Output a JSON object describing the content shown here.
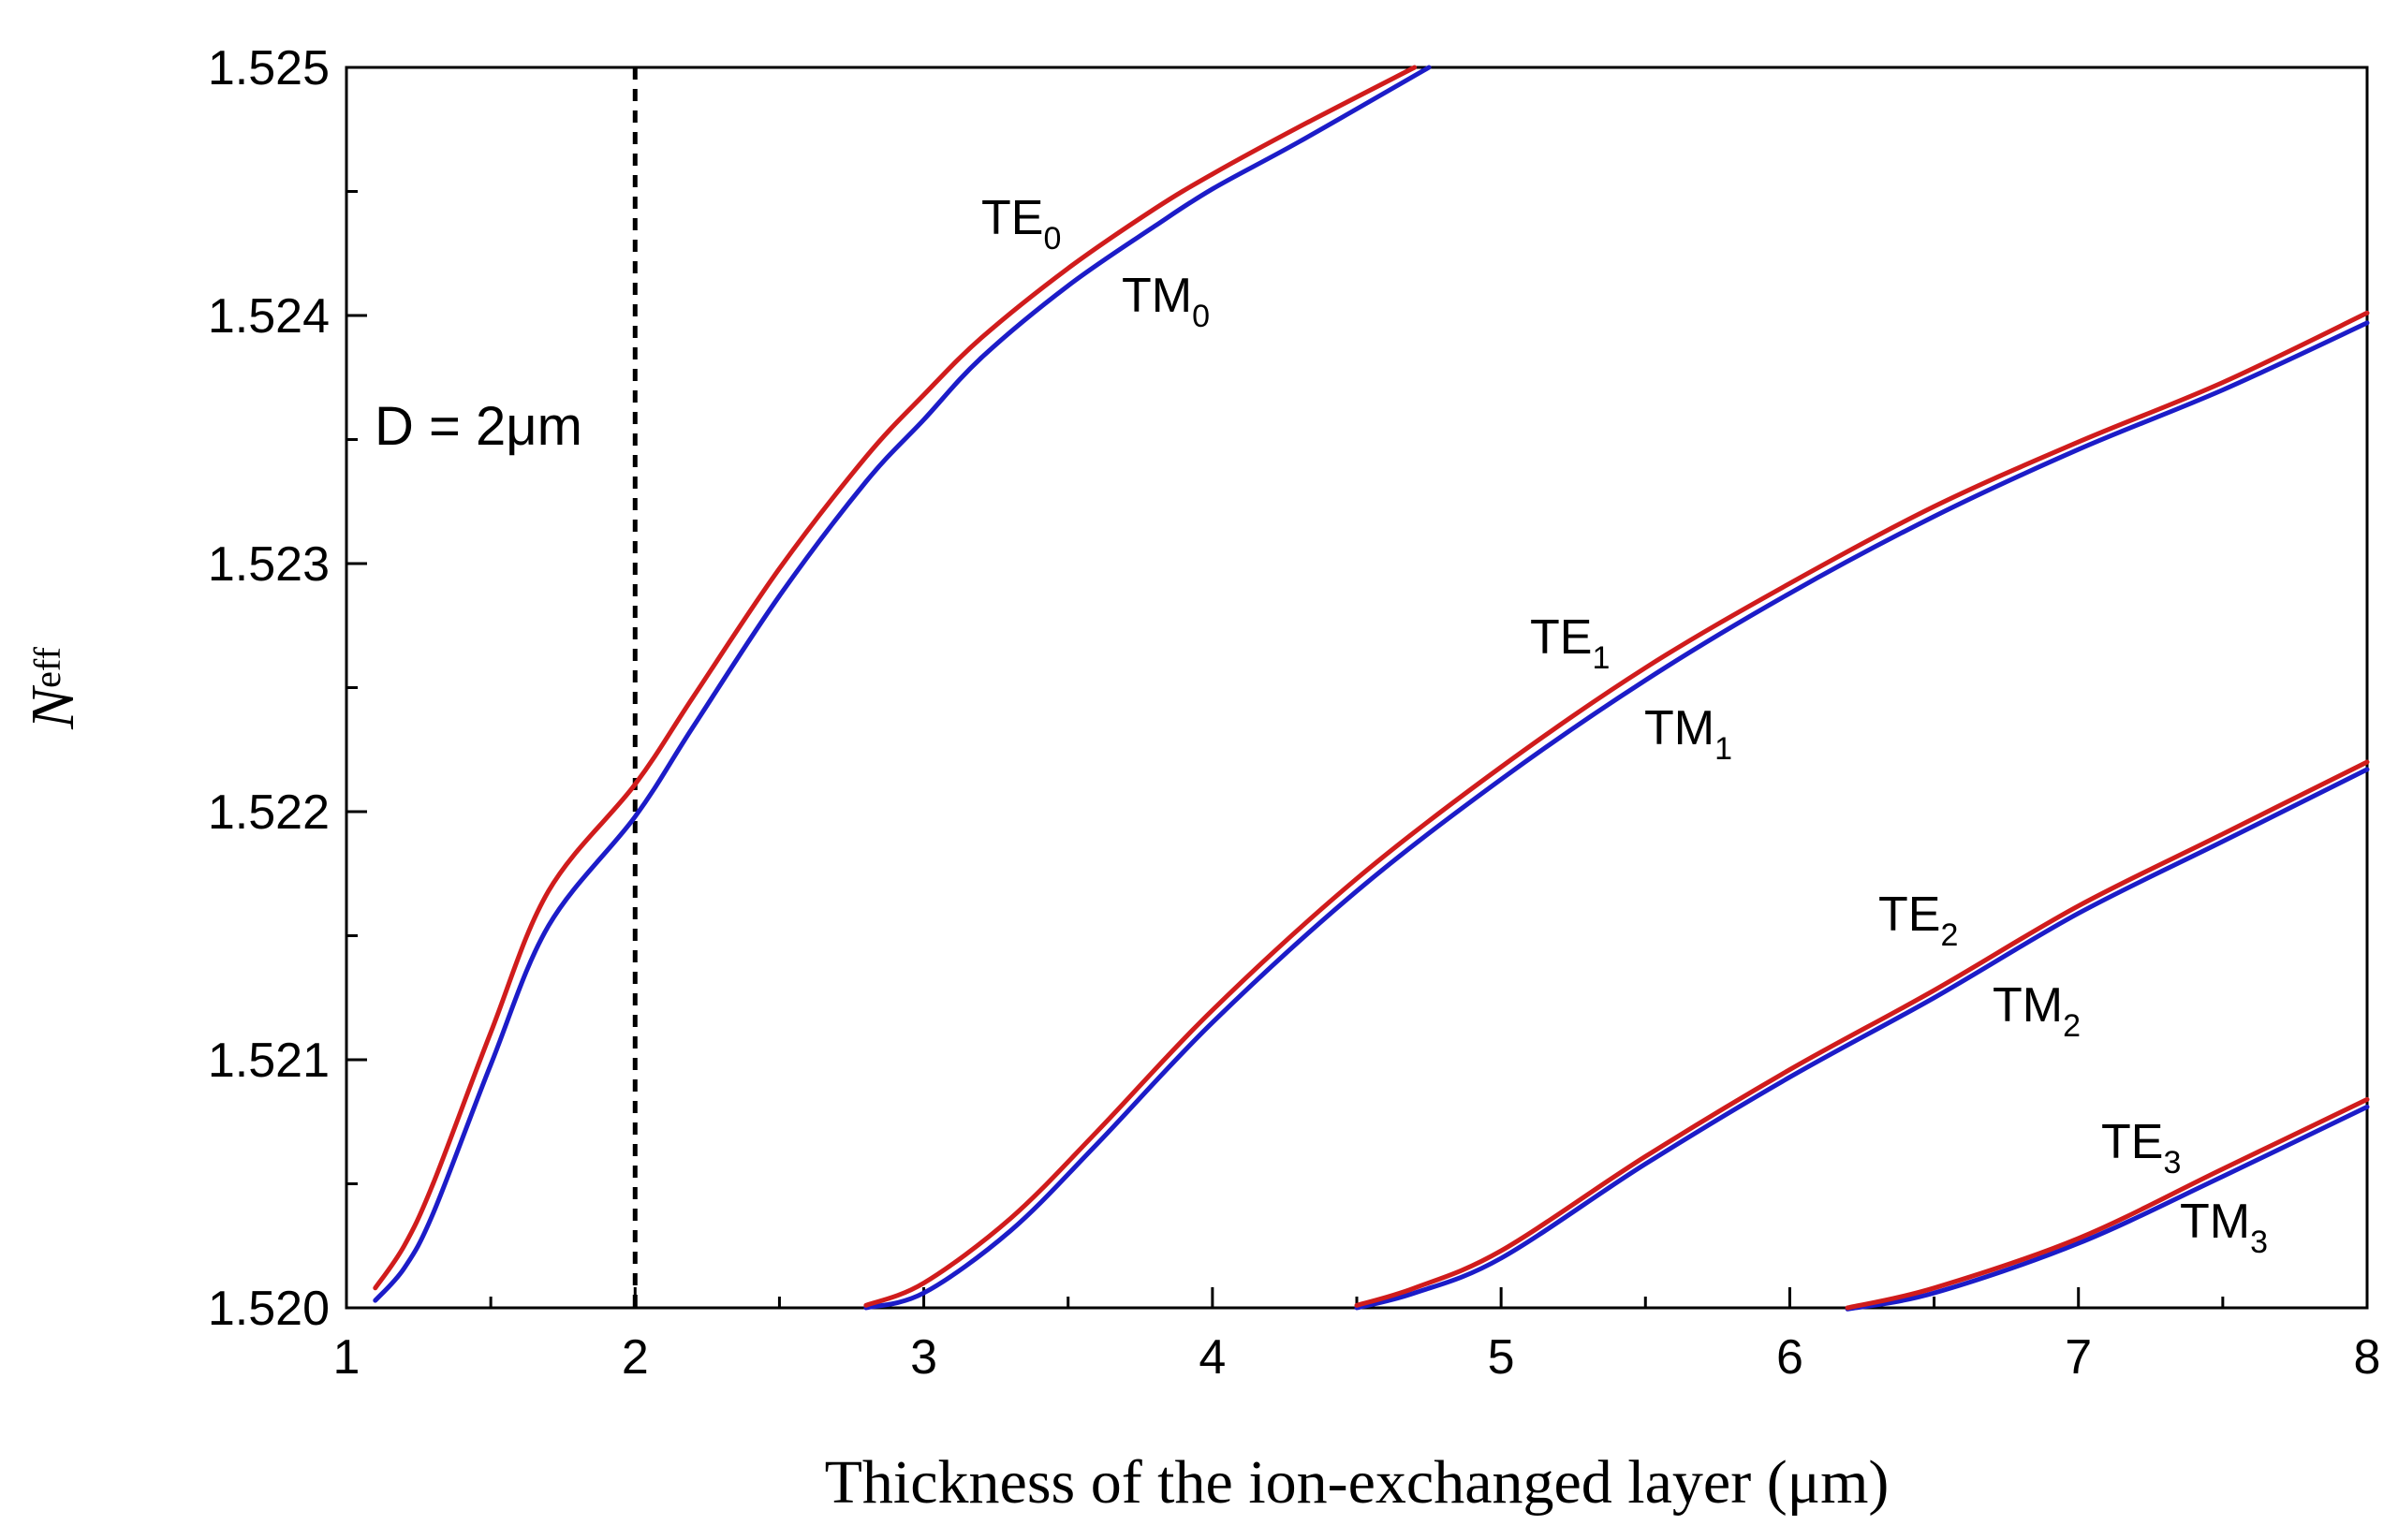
{
  "chart_data": {
    "type": "line",
    "title": "",
    "xlabel": "Thickness of the ion-exchanged layer (μm)",
    "ylabel": "N",
    "ylabel_subscript": "eff",
    "xlim": [
      1,
      8
    ],
    "ylim": [
      1.52,
      1.525
    ],
    "x_ticks": [
      1,
      2,
      3,
      4,
      5,
      6,
      7,
      8
    ],
    "x_tick_labels": [
      "1",
      "2",
      "3",
      "4",
      "5",
      "6",
      "7",
      "8"
    ],
    "y_ticks": [
      1.52,
      1.521,
      1.522,
      1.523,
      1.524,
      1.525
    ],
    "y_tick_labels": [
      "1.520",
      "1.521",
      "1.522",
      "1.523",
      "1.524",
      "1.525"
    ],
    "grid": false,
    "reference_line": {
      "x": 2,
      "style": "dashed",
      "label": "D = 2μm"
    },
    "colors": {
      "TE": "#d01c1c",
      "TM": "#1c1cc8",
      "axis": "#000000"
    },
    "series": [
      {
        "name": "TE0",
        "mode": "TE",
        "order": "0",
        "x": [
          1.1,
          1.2,
          1.3,
          1.5,
          1.7,
          2.0,
          2.2,
          2.5,
          2.8,
          3.0,
          3.2,
          3.5,
          3.8,
          4.0,
          4.3,
          4.7
        ],
        "y": [
          1.52008,
          1.52025,
          1.5205,
          1.52111,
          1.52168,
          1.52211,
          1.52246,
          1.52298,
          1.52343,
          1.52368,
          1.52391,
          1.52419,
          1.52443,
          1.52457,
          1.52476,
          1.525
        ]
      },
      {
        "name": "TM0",
        "mode": "TM",
        "order": "0",
        "x": [
          1.1,
          1.2,
          1.3,
          1.5,
          1.7,
          2.0,
          2.2,
          2.5,
          2.8,
          3.0,
          3.2,
          3.5,
          3.8,
          4.0,
          4.3,
          4.75
        ],
        "y": [
          1.52003,
          1.52016,
          1.52038,
          1.52098,
          1.52154,
          1.52198,
          1.52234,
          1.52287,
          1.52333,
          1.52358,
          1.52383,
          1.52412,
          1.52436,
          1.52451,
          1.5247,
          1.525
        ]
      },
      {
        "name": "TE1",
        "mode": "TE",
        "order": "1",
        "x": [
          2.8,
          3.0,
          3.3,
          3.6,
          4.0,
          4.5,
          5.0,
          5.5,
          6.0,
          6.5,
          7.0,
          7.5,
          8.0
        ],
        "y": [
          1.52001,
          1.5201,
          1.52036,
          1.52071,
          1.5212,
          1.52173,
          1.52218,
          1.52258,
          1.52292,
          1.52323,
          1.52349,
          1.52373,
          1.52401
        ]
      },
      {
        "name": "TM1",
        "mode": "TM",
        "order": "1",
        "x": [
          2.8,
          3.0,
          3.3,
          3.6,
          4.0,
          4.5,
          5.0,
          5.5,
          6.0,
          6.5,
          7.0,
          7.5,
          8.0
        ],
        "y": [
          1.52,
          1.52006,
          1.52031,
          1.52066,
          1.52115,
          1.52168,
          1.52213,
          1.52253,
          1.52288,
          1.52319,
          1.52346,
          1.5237,
          1.52397
        ]
      },
      {
        "name": "TE2",
        "mode": "TE",
        "order": "2",
        "x": [
          4.5,
          4.7,
          5.0,
          5.5,
          6.0,
          6.5,
          7.0,
          7.5,
          8.0
        ],
        "y": [
          1.52001,
          1.52008,
          1.52023,
          1.52061,
          1.52096,
          1.52128,
          1.52162,
          1.52191,
          1.5222
        ]
      },
      {
        "name": "TM2",
        "mode": "TM",
        "order": "2",
        "x": [
          4.5,
          4.7,
          5.0,
          5.5,
          6.0,
          6.5,
          7.0,
          7.5,
          8.0
        ],
        "y": [
          1.52,
          1.52006,
          1.5202,
          1.52058,
          1.52093,
          1.52125,
          1.52159,
          1.52188,
          1.52217
        ]
      },
      {
        "name": "TE3",
        "mode": "TE",
        "order": "3",
        "x": [
          6.2,
          6.5,
          7.0,
          7.5,
          8.0
        ],
        "y": [
          1.52,
          1.52008,
          1.52028,
          1.52056,
          1.52084
        ]
      },
      {
        "name": "TM3",
        "mode": "TM",
        "order": "3",
        "x": [
          6.2,
          6.5,
          7.0,
          7.5,
          8.0
        ],
        "y": [
          1.519995,
          1.52006,
          1.52026,
          1.52053,
          1.52081
        ]
      }
    ],
    "annotations": [
      {
        "series": "TE0",
        "base": "TE",
        "sub": "0"
      },
      {
        "series": "TM0",
        "base": "TM",
        "sub": "0"
      },
      {
        "series": "TE1",
        "base": "TE",
        "sub": "1"
      },
      {
        "series": "TM1",
        "base": "TM",
        "sub": "1"
      },
      {
        "series": "TE2",
        "base": "TE",
        "sub": "2"
      },
      {
        "series": "TM2",
        "base": "TM",
        "sub": "2"
      },
      {
        "series": "TE3",
        "base": "TE",
        "sub": "3"
      },
      {
        "series": "TM3",
        "base": "TM",
        "sub": "3"
      }
    ]
  }
}
